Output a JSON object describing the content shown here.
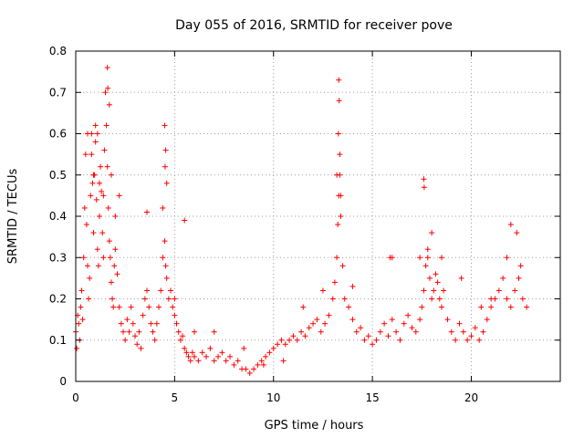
{
  "chart_data": {
    "type": "scatter",
    "title": "Day 055 of 2016, SRMTID for receiver pove",
    "xlabel": "GPS time / hours",
    "ylabel": "SRMTID / TECUs",
    "xlim": [
      0,
      24.5
    ],
    "ylim": [
      0,
      0.8
    ],
    "xticks": [
      0,
      5,
      10,
      15,
      20
    ],
    "yticks": [
      0,
      0.1,
      0.2,
      0.3,
      0.4,
      0.5,
      0.6,
      0.7,
      0.8
    ],
    "xtick_labels": [
      "0",
      "5",
      "10",
      "15",
      "20"
    ],
    "ytick_labels": [
      "0",
      "0.1",
      "0.2",
      "0.3",
      "0.4",
      "0.5",
      "0.6",
      "0.7",
      "0.8"
    ],
    "grid": true,
    "marker": "+",
    "color": "#ff0000",
    "series": [
      {
        "name": "SRMTID",
        "x": [
          0.0,
          0.05,
          0.1,
          0.15,
          0.2,
          0.25,
          0.3,
          0.35,
          0.4,
          0.45,
          0.5,
          0.55,
          0.6,
          0.65,
          0.7,
          0.75,
          0.8,
          0.85,
          0.9,
          0.95,
          1.0,
          1.05,
          1.1,
          1.15,
          1.2,
          1.25,
          1.3,
          1.35,
          1.4,
          1.45,
          1.5,
          1.55,
          1.6,
          1.65,
          1.7,
          1.75,
          1.8,
          1.85,
          1.9,
          1.95,
          2.0,
          2.1,
          2.2,
          2.3,
          2.4,
          2.5,
          2.6,
          2.7,
          2.8,
          2.9,
          3.0,
          3.1,
          3.2,
          3.3,
          3.4,
          3.5,
          3.6,
          3.7,
          3.8,
          3.9,
          4.0,
          4.1,
          4.2,
          4.3,
          4.4,
          4.5,
          4.55,
          4.6,
          4.7,
          4.8,
          4.9,
          5.0,
          5.1,
          5.2,
          5.3,
          5.4,
          5.5,
          5.6,
          5.7,
          5.8,
          5.9,
          6.0,
          6.2,
          6.4,
          6.6,
          6.8,
          7.0,
          7.2,
          7.4,
          7.6,
          7.8,
          8.0,
          8.2,
          8.4,
          8.6,
          8.8,
          9.0,
          9.2,
          9.4,
          9.6,
          9.8,
          10.0,
          10.2,
          10.4,
          10.6,
          10.8,
          11.0,
          11.2,
          11.4,
          11.6,
          11.8,
          12.0,
          12.2,
          12.4,
          12.6,
          12.8,
          13.0,
          13.1,
          13.2,
          13.25,
          13.3,
          13.35,
          13.4,
          13.5,
          13.6,
          13.8,
          14.0,
          14.2,
          14.4,
          14.6,
          14.8,
          15.0,
          15.2,
          15.4,
          15.6,
          15.8,
          16.0,
          16.2,
          16.4,
          16.6,
          16.8,
          17.0,
          17.2,
          17.4,
          17.5,
          17.6,
          17.7,
          17.8,
          17.9,
          18.0,
          18.1,
          18.2,
          18.3,
          18.4,
          18.5,
          18.6,
          18.8,
          19.0,
          19.2,
          19.4,
          19.6,
          19.8,
          20.0,
          20.2,
          20.4,
          20.6,
          20.8,
          21.0,
          21.2,
          21.4,
          21.6,
          21.8,
          22.0,
          22.2,
          22.4,
          22.6,
          22.8,
          1.6,
          1.62,
          1.7,
          1.0,
          1.1,
          4.5,
          4.55,
          4.52,
          13.3,
          13.32,
          13.28,
          13.35,
          17.6,
          17.62,
          2.2,
          3.6,
          5.5,
          22.0,
          22.3,
          18.0,
          0.6,
          0.8,
          0.9,
          1.2,
          1.4,
          1.8,
          2.0,
          4.4,
          4.6,
          13.2,
          13.4,
          17.4,
          17.8,
          18.5,
          21.8,
          22.5,
          16.0,
          15.9,
          14.0,
          12.5,
          7.0,
          8.5,
          9.5,
          10.5,
          11.5,
          19.5,
          20.5,
          21.0,
          6.0,
          5.0
        ],
        "y": [
          0.12,
          0.08,
          0.16,
          0.14,
          0.1,
          0.18,
          0.22,
          0.15,
          0.3,
          0.42,
          0.55,
          0.38,
          0.28,
          0.2,
          0.25,
          0.45,
          0.6,
          0.48,
          0.36,
          0.5,
          0.58,
          0.44,
          0.32,
          0.28,
          0.4,
          0.52,
          0.46,
          0.36,
          0.3,
          0.56,
          0.7,
          0.62,
          0.52,
          0.42,
          0.34,
          0.3,
          0.24,
          0.2,
          0.18,
          0.28,
          0.32,
          0.26,
          0.18,
          0.14,
          0.12,
          0.1,
          0.15,
          0.12,
          0.18,
          0.14,
          0.11,
          0.09,
          0.12,
          0.08,
          0.16,
          0.2,
          0.22,
          0.18,
          0.14,
          0.12,
          0.1,
          0.14,
          0.18,
          0.22,
          0.3,
          0.34,
          0.28,
          0.25,
          0.2,
          0.22,
          0.18,
          0.16,
          0.14,
          0.12,
          0.1,
          0.11,
          0.08,
          0.07,
          0.06,
          0.05,
          0.07,
          0.06,
          0.05,
          0.07,
          0.06,
          0.08,
          0.05,
          0.06,
          0.07,
          0.05,
          0.06,
          0.04,
          0.05,
          0.03,
          0.03,
          0.02,
          0.03,
          0.04,
          0.05,
          0.06,
          0.07,
          0.08,
          0.09,
          0.1,
          0.09,
          0.1,
          0.11,
          0.1,
          0.12,
          0.11,
          0.13,
          0.14,
          0.15,
          0.12,
          0.14,
          0.16,
          0.2,
          0.24,
          0.3,
          0.38,
          0.45,
          0.55,
          0.4,
          0.28,
          0.2,
          0.18,
          0.15,
          0.12,
          0.13,
          0.1,
          0.11,
          0.09,
          0.1,
          0.12,
          0.14,
          0.11,
          0.15,
          0.12,
          0.1,
          0.14,
          0.16,
          0.13,
          0.12,
          0.15,
          0.18,
          0.22,
          0.28,
          0.32,
          0.25,
          0.2,
          0.22,
          0.26,
          0.24,
          0.2,
          0.18,
          0.22,
          0.15,
          0.12,
          0.1,
          0.14,
          0.12,
          0.1,
          0.11,
          0.13,
          0.1,
          0.12,
          0.15,
          0.18,
          0.2,
          0.22,
          0.25,
          0.2,
          0.18,
          0.22,
          0.25,
          0.2,
          0.18,
          0.76,
          0.71,
          0.67,
          0.62,
          0.6,
          0.62,
          0.56,
          0.52,
          0.73,
          0.68,
          0.6,
          0.5,
          0.49,
          0.47,
          0.45,
          0.41,
          0.39,
          0.38,
          0.36,
          0.36,
          0.6,
          0.55,
          0.5,
          0.48,
          0.45,
          0.5,
          0.4,
          0.42,
          0.48,
          0.5,
          0.45,
          0.3,
          0.3,
          0.3,
          0.3,
          0.28,
          0.3,
          0.3,
          0.23,
          0.22,
          0.12,
          0.08,
          0.04,
          0.05,
          0.18,
          0.25,
          0.18,
          0.2,
          0.12,
          0.2
        ]
      }
    ]
  }
}
